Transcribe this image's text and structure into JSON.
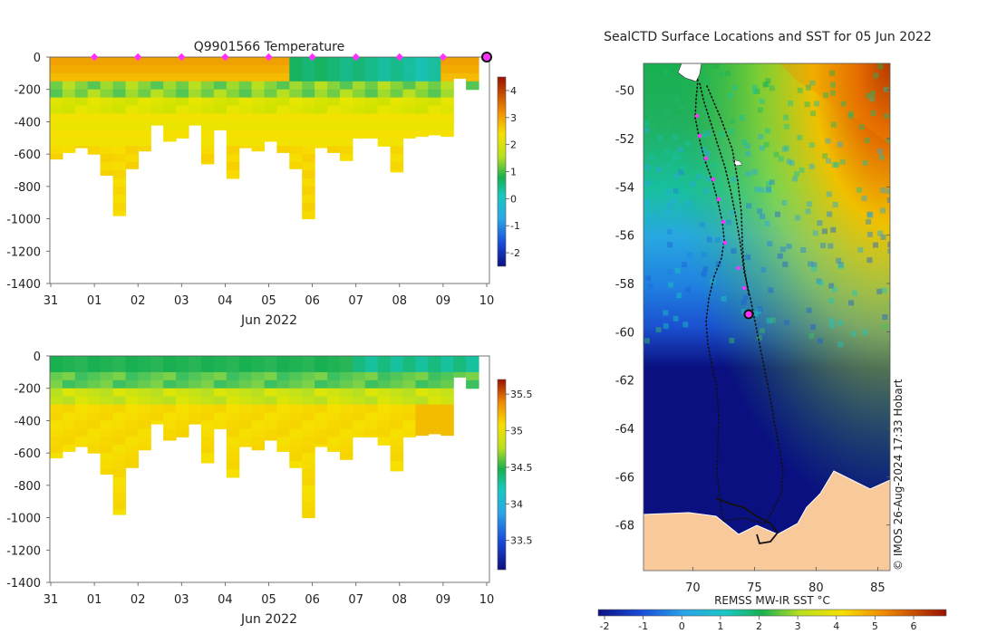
{
  "colors": {
    "land": "#f8c99b",
    "track": "#111111",
    "marker": "#ff33ff",
    "position": "#ff33ff"
  },
  "chart_data": [
    {
      "type": "heatmap",
      "title": "Q9901566  Temperature",
      "xlabel": "Jun 2022",
      "ylabel": "",
      "x_tick_labels": [
        "31",
        "01",
        "02",
        "03",
        "04",
        "05",
        "06",
        "07",
        "08",
        "09",
        "10"
      ],
      "y_tick_labels": [
        "0",
        "-200",
        "-400",
        "-600",
        "-800",
        "-1000",
        "-1200",
        "-1400"
      ],
      "ylim": [
        -1400,
        0
      ],
      "colorbar": {
        "ticks": [
          "4",
          "3",
          "2",
          "1",
          "0",
          "-1",
          "-2"
        ],
        "range": [
          -2.5,
          4.5
        ]
      },
      "daily_markers_at_day": [
        1,
        2,
        3,
        4,
        5,
        6,
        7,
        8,
        9
      ],
      "current_position_day": 10,
      "profile_depths_m": [
        630,
        590,
        560,
        600,
        730,
        980,
        690,
        580,
        420,
        520,
        500,
        420,
        660,
        450,
        750,
        560,
        580,
        520,
        590,
        690,
        1000,
        560,
        590,
        640,
        500,
        500,
        550,
        710,
        500,
        490,
        480,
        490,
        130,
        200
      ]
    },
    {
      "type": "heatmap",
      "title": "",
      "xlabel": "Jun 2022",
      "ylabel": "",
      "x_tick_labels": [
        "31",
        "01",
        "02",
        "03",
        "04",
        "05",
        "06",
        "07",
        "08",
        "09",
        "10"
      ],
      "y_tick_labels": [
        "0",
        "-200",
        "-400",
        "-600",
        "-800",
        "-1000",
        "-1200",
        "-1400"
      ],
      "ylim": [
        -1400,
        0
      ],
      "colorbar": {
        "ticks": [
          "35.5",
          "35",
          "34.5",
          "34",
          "33.5"
        ],
        "range": [
          33.1,
          35.7
        ]
      },
      "profile_depths_m": [
        630,
        590,
        560,
        600,
        730,
        980,
        690,
        580,
        420,
        520,
        500,
        420,
        660,
        450,
        750,
        560,
        580,
        520,
        590,
        690,
        1000,
        560,
        590,
        640,
        500,
        500,
        550,
        710,
        500,
        490,
        480,
        490,
        130,
        200
      ]
    },
    {
      "type": "map",
      "title": "SealCTD Surface Locations and SST for 05 Jun 2022",
      "x_tick_labels": [
        "70",
        "75",
        "80",
        "85"
      ],
      "y_tick_labels": [
        "-50",
        "-52",
        "-54",
        "-56",
        "-58",
        "-60",
        "-62",
        "-64",
        "-66",
        "-68"
      ],
      "colorbar_label": "REMSS MW-IR SST °C",
      "colorbar_ticks": [
        "-2",
        "-1",
        "0",
        "1",
        "2",
        "3",
        "4",
        "5",
        "6"
      ],
      "credit": "© IMOS 26-Aug-2024 17:33 Hobart",
      "current_position": {
        "lon": 74.5,
        "lat": -59.4
      }
    }
  ]
}
